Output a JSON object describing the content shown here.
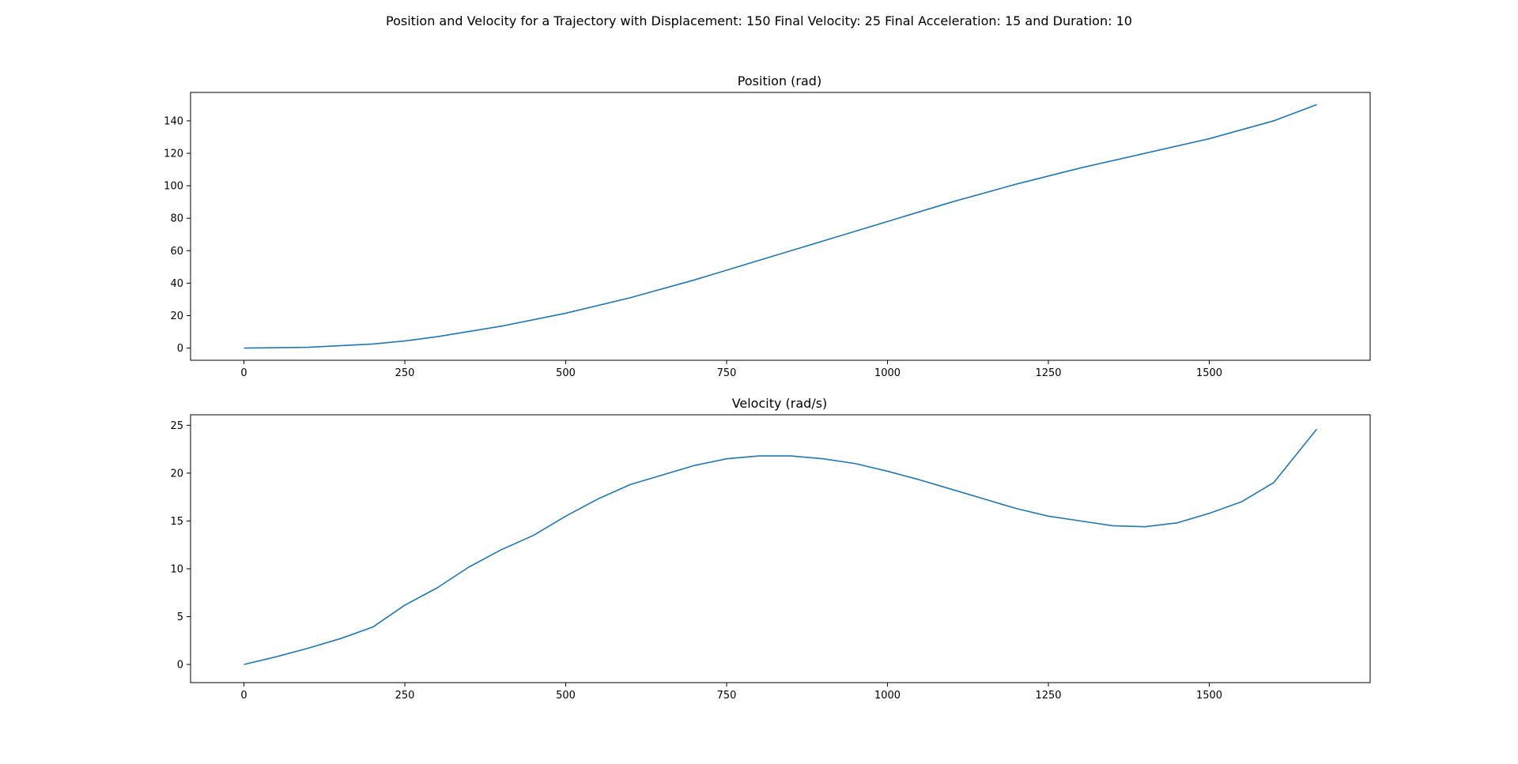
{
  "figure": {
    "suptitle": "Position and Velocity for a Trajectory with Displacement: 150 Final Velocity: 25 Final Acceleration: 15 and Duration: 10"
  },
  "colors": {
    "line": "#1f77b4",
    "axes": "#000000",
    "background": "#ffffff"
  },
  "chart_data": [
    {
      "type": "line",
      "title": "Position (rad)",
      "xlabel": "",
      "ylabel": "",
      "xlim": [
        -83,
        1750
      ],
      "ylim": [
        -7.5,
        157.5
      ],
      "xticks": [
        0,
        250,
        500,
        750,
        1000,
        1250,
        1500
      ],
      "yticks": [
        0,
        20,
        40,
        60,
        80,
        100,
        120,
        140
      ],
      "grid": false,
      "legend": "none",
      "series": [
        {
          "x": [
            0,
            100,
            200,
            250,
            300,
            400,
            500,
            600,
            700,
            800,
            900,
            1000,
            1100,
            1200,
            1300,
            1400,
            1500,
            1600,
            1667
          ],
          "values": [
            0,
            0.5,
            2.5,
            4.4,
            7,
            13.5,
            21.5,
            31,
            42,
            54,
            66,
            78,
            90,
            101,
            111,
            120,
            129,
            140,
            150
          ]
        }
      ]
    },
    {
      "type": "line",
      "title": "Velocity (rad/s)",
      "xlabel": "",
      "ylabel": "",
      "xlim": [
        -83,
        1750
      ],
      "ylim": [
        -1.9,
        26.1
      ],
      "xticks": [
        0,
        250,
        500,
        750,
        1000,
        1250,
        1500
      ],
      "yticks": [
        0,
        5,
        10,
        15,
        20,
        25
      ],
      "grid": false,
      "legend": "none",
      "series": [
        {
          "x": [
            0,
            50,
            100,
            150,
            200,
            250,
            300,
            350,
            400,
            450,
            500,
            550,
            600,
            650,
            700,
            750,
            800,
            850,
            900,
            950,
            1000,
            1050,
            1100,
            1150,
            1200,
            1250,
            1300,
            1350,
            1400,
            1450,
            1500,
            1550,
            1600,
            1667
          ],
          "values": [
            0,
            0.8,
            1.7,
            2.7,
            3.9,
            6.2,
            8.0,
            10.2,
            12.0,
            13.5,
            15.5,
            17.3,
            18.8,
            19.8,
            20.8,
            21.5,
            21.8,
            21.8,
            21.5,
            21.0,
            20.2,
            19.3,
            18.3,
            17.3,
            16.3,
            15.5,
            15.0,
            14.5,
            14.4,
            14.8,
            15.8,
            17.0,
            19.0,
            24.6
          ]
        }
      ]
    }
  ]
}
